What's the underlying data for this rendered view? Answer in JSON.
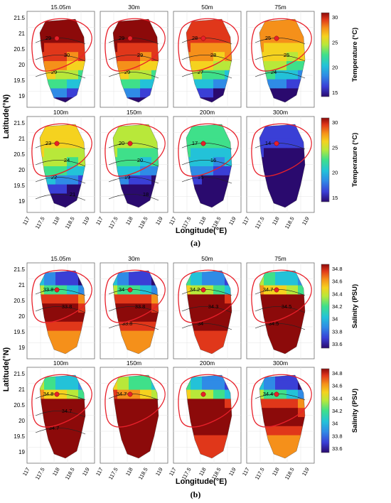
{
  "figure": {
    "depth_labels": [
      "15.05m",
      "30m",
      "50m",
      "75m",
      "100m",
      "150m",
      "200m",
      "300m"
    ],
    "xticks": [
      "117",
      "117.5",
      "118",
      "118.5",
      "119"
    ],
    "yticks": [
      "21.5",
      "21",
      "20.5",
      "20",
      "19.5",
      "19"
    ],
    "xlabel": "Longitude(°E)",
    "ylabel": "Latitude(°N)",
    "panel_a": {
      "caption": "(a)",
      "colorbar_label": "Temperature (°C)",
      "colorbar_ticks": [
        "30",
        "25",
        "20",
        "15"
      ],
      "contour_labels": [
        [
          "29",
          "30",
          "29"
        ],
        [
          "29",
          "29",
          "29"
        ],
        [
          "28",
          "28",
          "27"
        ],
        [
          "25",
          "25",
          "24"
        ],
        [
          "23",
          "24",
          "22",
          "21"
        ],
        [
          "20",
          "20",
          "19",
          "18"
        ],
        [
          "17",
          "16",
          "15"
        ],
        [
          "14"
        ]
      ]
    },
    "panel_b": {
      "caption": "(b)",
      "colorbar_label": "Salinity (PSU)",
      "colorbar_ticks": [
        "34.8",
        "34.6",
        "34.4",
        "34.2",
        "34",
        "33.8",
        "33.6"
      ],
      "contour_labels": [
        [
          "33.8",
          "33.8"
        ],
        [
          "34",
          "33.8",
          "33.8"
        ],
        [
          "34.2",
          "34.3",
          "34"
        ],
        [
          "34.7",
          "34.5",
          "34.5"
        ],
        [
          "34.8",
          "34.7",
          "34.7"
        ],
        [
          "34.7"
        ],
        [],
        [
          "34.4"
        ]
      ]
    }
  },
  "colors": {
    "jet": [
      "#2a0a6e",
      "#3a3fd6",
      "#2f8be6",
      "#23c2d8",
      "#3fe08a",
      "#b8e83a",
      "#f5d21f",
      "#f5901a",
      "#e0371a",
      "#8c0a0a"
    ],
    "boundary_red": "#e8202a",
    "marker_red": "#e8202a"
  }
}
